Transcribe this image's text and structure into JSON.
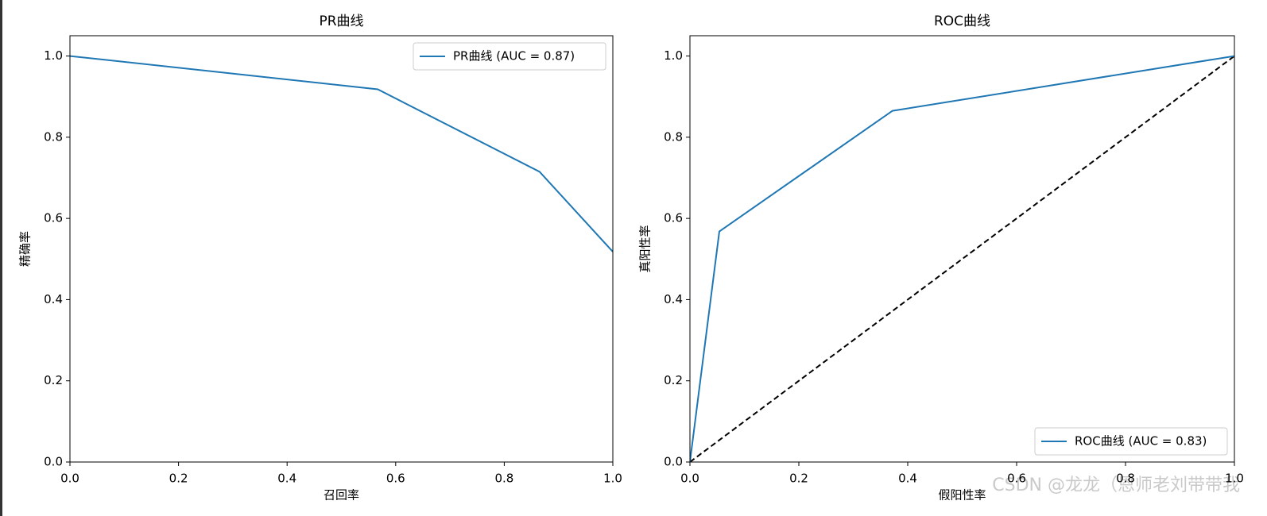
{
  "charts_page": true,
  "watermark": "CSDN @龙龙（恩师老刘带带我",
  "chart_data": [
    {
      "type": "line",
      "title": "PR曲线",
      "xlabel": "召回率",
      "ylabel": "精确率",
      "xlim": [
        0,
        1
      ],
      "ylim": [
        0,
        1.05
      ],
      "xticks": [
        {
          "value": 0,
          "label": "0.0"
        },
        0.2,
        0.4,
        0.6,
        0.8,
        {
          "value": 1,
          "label": "1.0"
        }
      ],
      "yticks": [
        {
          "value": 0,
          "label": "0.0"
        },
        0.2,
        0.4,
        0.6,
        0.8,
        {
          "value": 1,
          "label": "1.0"
        }
      ],
      "legend": "upper-right",
      "series": [
        {
          "name": "PR曲线 (AUC = 0.87)",
          "color": "#1f77b4",
          "x": [
            0,
            0.567,
            0.865,
            1.0
          ],
          "values": [
            1.0,
            0.918,
            0.715,
            0.518
          ]
        }
      ]
    },
    {
      "type": "line",
      "title": "ROC曲线",
      "xlabel": "假阳性率",
      "ylabel": "真阳性率",
      "xlim": [
        0,
        1
      ],
      "ylim": [
        0,
        1.05
      ],
      "xticks": [
        {
          "value": 0,
          "label": "0.0"
        },
        0.2,
        0.4,
        0.6,
        0.8,
        {
          "value": 1,
          "label": "1.0"
        }
      ],
      "yticks": [
        {
          "value": 0,
          "label": "0.0"
        },
        0.2,
        0.4,
        0.6,
        0.8,
        {
          "value": 1,
          "label": "1.0"
        }
      ],
      "legend": "lower-right",
      "reference_line": {
        "x": [
          0,
          1
        ],
        "values": [
          0,
          1
        ],
        "color": "#000000",
        "style": "dashed"
      },
      "series": [
        {
          "name": "ROC曲线 (AUC = 0.83)",
          "color": "#1f77b4",
          "x": [
            0,
            0.054,
            0.372,
            1.0
          ],
          "values": [
            0,
            0.568,
            0.865,
            1.0
          ]
        }
      ]
    }
  ]
}
